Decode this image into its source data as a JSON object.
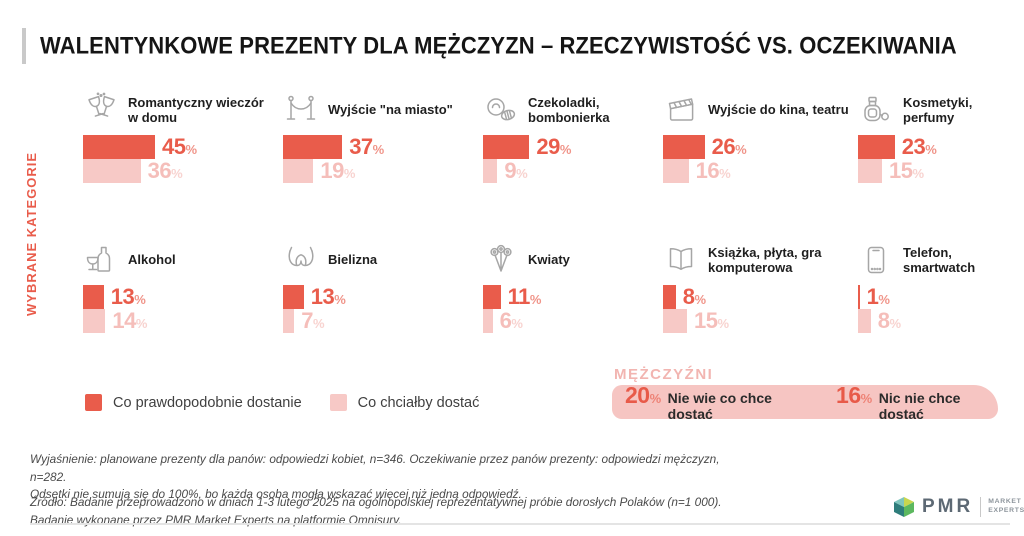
{
  "title": "WALENTYNKOWE PREZENTY DLA MĘŻCZYZN – RZECZYWISTOŚĆ VS. OCZEKIWANIA",
  "side_label": "WYBRANE KATEGORIE",
  "colors": {
    "reality": "#e95c4b",
    "expectation": "#f7c9c6",
    "men_box_bg": "#f6c5c2",
    "men_heading": "#f2b5b1",
    "icon_gray": "#a6a6a6"
  },
  "legend": {
    "reality_label": "Co prawdopodobnie dostanie",
    "expectation_label": "Co chciałby dostać"
  },
  "categories": [
    {
      "label": "Romantyczny wieczór w domu",
      "icon": "champagne-glasses-icon",
      "reality": 45,
      "expectation": 36
    },
    {
      "label": "Wyjście \"na miasto\"",
      "icon": "velvet-rope-icon",
      "reality": 37,
      "expectation": 19
    },
    {
      "label": "Czekoladki, bombonierka",
      "icon": "chocolates-icon",
      "reality": 29,
      "expectation": 9
    },
    {
      "label": "Wyjście do kina, teatru",
      "icon": "clapperboard-icon",
      "reality": 26,
      "expectation": 16
    },
    {
      "label": "Kosmetyki, perfumy",
      "icon": "perfume-icon",
      "reality": 23,
      "expectation": 15
    },
    {
      "label": "Alkohol",
      "icon": "alcohol-icon",
      "reality": 13,
      "expectation": 14
    },
    {
      "label": "Bielizna",
      "icon": "bra-icon",
      "reality": 13,
      "expectation": 7
    },
    {
      "label": "Kwiaty",
      "icon": "flowers-icon",
      "reality": 11,
      "expectation": 6
    },
    {
      "label": "Książka, płyta, gra komputerowa",
      "icon": "book-icon",
      "reality": 8,
      "expectation": 15
    },
    {
      "label": "Telefon, smartwatch",
      "icon": "smartphone-icon",
      "reality": 1,
      "expectation": 8
    }
  ],
  "men_section": {
    "heading": "MĘŻCZYŹNI",
    "items": [
      {
        "value": "20",
        "unit": "%",
        "label": "Nie wie co chce dostać"
      },
      {
        "value": "16",
        "unit": "%",
        "label": "Nic nie chce dostać"
      }
    ]
  },
  "footnotes": {
    "explain_line1": "Wyjaśnienie: planowane prezenty dla panów: odpowiedzi kobiet, n=346. Oczekiwanie przez panów prezenty: odpowiedzi mężczyzn, n=282.",
    "explain_line2": "Odsetki nie sumują się do 100%, bo każda osoba mogła wskazać więcej niż jedną odpowiedź.",
    "source_line1": "Źródło: Badanie przeprowadzono w dniach 1-3 lutego 2025 na ogólnopolskiej reprezentatywnej próbie dorosłych Polaków (n=1 000).",
    "source_line2": "Badanie wykonane przez PMR Market Experts na platformie Omnisurv."
  },
  "logo": {
    "text": "PMR",
    "tagline_line1": "MARKET",
    "tagline_line2": "EXPERTS"
  },
  "chart_data": {
    "type": "bar",
    "title": "WALENTYNKOWE PREZENTY DLA MĘŻCZYZN – RZECZYWISTOŚĆ VS. OCZEKIWANIA",
    "orientation": "horizontal",
    "unit": "%",
    "categories": [
      "Romantyczny wieczór w domu",
      "Wyjście \"na miasto\"",
      "Czekoladki, bombonierka",
      "Wyjście do kina, teatru",
      "Kosmetyki, perfumy",
      "Alkohol",
      "Bielizna",
      "Kwiaty",
      "Książka, płyta, gra komputerowa",
      "Telefon, smartwatch"
    ],
    "series": [
      {
        "name": "Co prawdopodobnie dostanie",
        "color": "#e95c4b",
        "values": [
          45,
          37,
          29,
          26,
          23,
          13,
          13,
          11,
          8,
          1
        ]
      },
      {
        "name": "Co chciałby dostać",
        "color": "#f7c9c6",
        "values": [
          36,
          19,
          9,
          16,
          15,
          14,
          7,
          6,
          15,
          8
        ]
      }
    ],
    "extra_stats": [
      {
        "group": "MĘŻCZYŹNI",
        "label": "Nie wie co chce dostać",
        "value": 20
      },
      {
        "group": "MĘŻCZYŹNI",
        "label": "Nic nie chce dostać",
        "value": 16
      }
    ],
    "xlim": [
      0,
      100
    ],
    "legend_position": "bottom-left",
    "grid": false
  }
}
